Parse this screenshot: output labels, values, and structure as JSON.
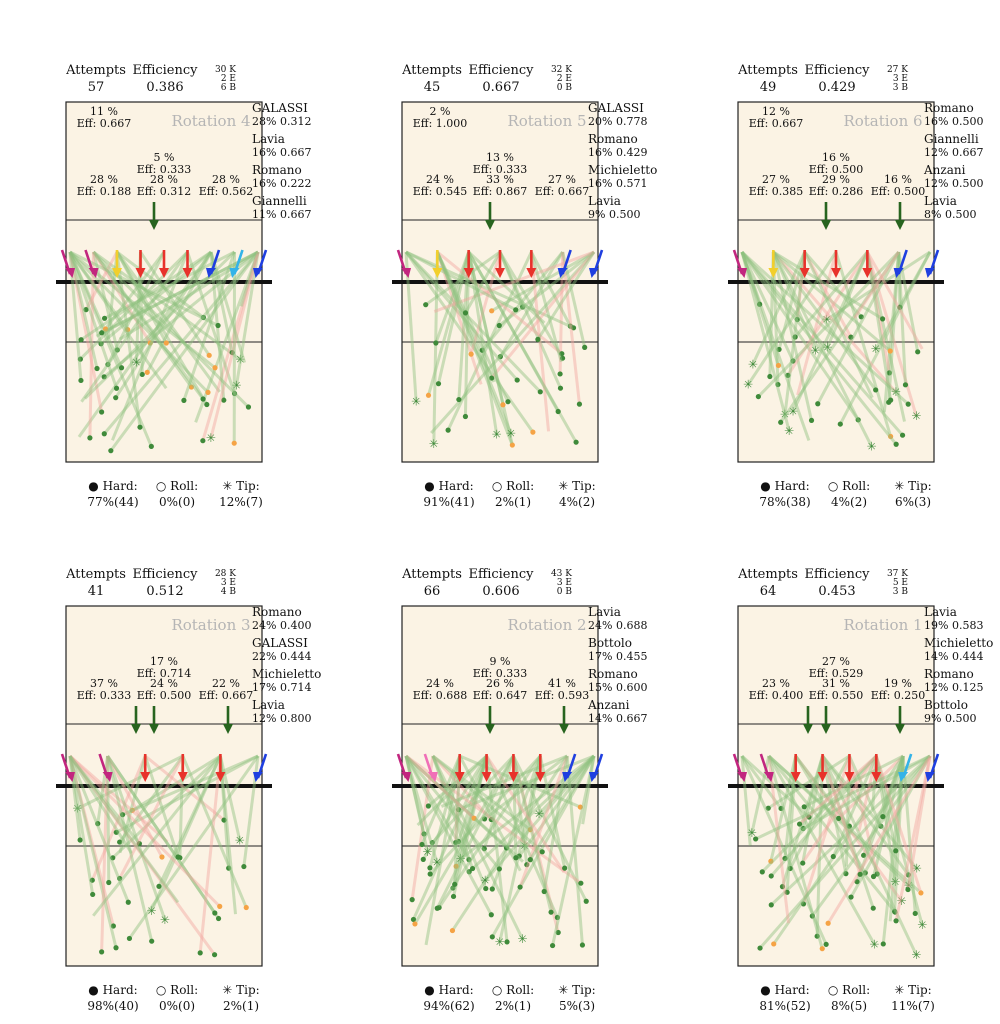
{
  "chart_data": [
    {
      "type": "scatter",
      "title": "Rotation 4",
      "attempts_label": "Attempts",
      "attempts": "57",
      "efficiency_label": "Efficiency",
      "efficiency": "0.386",
      "k_line": "30 K",
      "e_line": "2 E",
      "b_line": "6 B",
      "zones": [
        {
          "pct": "11 %",
          "eff": "Eff: 0.667",
          "pos": "tl"
        },
        {
          "pct": "5 %",
          "eff": "Eff: 0.333",
          "pos": "tm"
        },
        {
          "pct": "28 %",
          "eff": "Eff: 0.188",
          "pos": "bl"
        },
        {
          "pct": "28 %",
          "eff": "Eff: 0.312",
          "pos": "bm"
        },
        {
          "pct": "28 %",
          "eff": "Eff: 0.562",
          "pos": "br"
        }
      ],
      "players": [
        {
          "name": "GALASSI",
          "stat": "28% 0.312"
        },
        {
          "name": "Lavia",
          "stat": "16% 0.667"
        },
        {
          "name": "Romano",
          "stat": "16% 0.222"
        },
        {
          "name": "Giannelli",
          "stat": "11% 0.667"
        }
      ],
      "legend": [
        {
          "symbol": "●",
          "label": "Hard:",
          "value": "77%(44)"
        },
        {
          "symbol": "○",
          "label": "Roll:",
          "value": "0%(0)"
        },
        {
          "symbol": "✳",
          "label": "Tip:",
          "value": "12%(7)"
        }
      ],
      "arrows": [
        "magenta",
        "magenta",
        "yellow",
        "red",
        "red",
        "red",
        "blue",
        "lightblue",
        "blue"
      ],
      "green_arrows": 1
    },
    {
      "type": "scatter",
      "title": "Rotation 5",
      "attempts_label": "Attempts",
      "attempts": "45",
      "efficiency_label": "Efficiency",
      "efficiency": "0.667",
      "k_line": "32 K",
      "e_line": "2 E",
      "b_line": "0 B",
      "zones": [
        {
          "pct": "2 %",
          "eff": "Eff: 1.000",
          "pos": "tl"
        },
        {
          "pct": "13 %",
          "eff": "Eff: 0.333",
          "pos": "tm"
        },
        {
          "pct": "24 %",
          "eff": "Eff: 0.545",
          "pos": "bl"
        },
        {
          "pct": "33 %",
          "eff": "Eff: 0.867",
          "pos": "bm"
        },
        {
          "pct": "27 %",
          "eff": "Eff: 0.667",
          "pos": "br"
        }
      ],
      "players": [
        {
          "name": "GALASSI",
          "stat": "20% 0.778"
        },
        {
          "name": "Romano",
          "stat": "16% 0.429"
        },
        {
          "name": "Michieletto",
          "stat": "16% 0.571"
        },
        {
          "name": "Lavia",
          "stat": "9% 0.500"
        }
      ],
      "legend": [
        {
          "symbol": "●",
          "label": "Hard:",
          "value": "91%(41)"
        },
        {
          "symbol": "○",
          "label": "Roll:",
          "value": "2%(1)"
        },
        {
          "symbol": "✳",
          "label": "Tip:",
          "value": "4%(2)"
        }
      ],
      "arrows": [
        "magenta",
        "yellow",
        "red",
        "red",
        "red",
        "blue",
        "blue"
      ],
      "green_arrows": 1
    },
    {
      "type": "scatter",
      "title": "Rotation 6",
      "attempts_label": "Attempts",
      "attempts": "49",
      "efficiency_label": "Efficiency",
      "efficiency": "0.429",
      "k_line": "27 K",
      "e_line": "3 E",
      "b_line": "3 B",
      "zones": [
        {
          "pct": "12 %",
          "eff": "Eff: 0.667",
          "pos": "tl"
        },
        {
          "pct": "16 %",
          "eff": "Eff: 0.500",
          "pos": "tm"
        },
        {
          "pct": "27 %",
          "eff": "Eff: 0.385",
          "pos": "bl"
        },
        {
          "pct": "29 %",
          "eff": "Eff: 0.286",
          "pos": "bm"
        },
        {
          "pct": "16 %",
          "eff": "Eff: 0.500",
          "pos": "br"
        }
      ],
      "players": [
        {
          "name": "Romano",
          "stat": "16% 0.500"
        },
        {
          "name": "Giannelli",
          "stat": "12% 0.667"
        },
        {
          "name": "Anzani",
          "stat": "12% 0.500"
        },
        {
          "name": "Lavia",
          "stat": "8% 0.500"
        }
      ],
      "legend": [
        {
          "symbol": "●",
          "label": "Hard:",
          "value": "78%(38)"
        },
        {
          "symbol": "○",
          "label": "Roll:",
          "value": "4%(2)"
        },
        {
          "symbol": "✳",
          "label": "Tip:",
          "value": "6%(3)"
        }
      ],
      "arrows": [
        "magenta",
        "yellow",
        "red",
        "red",
        "red",
        "blue",
        "blue"
      ],
      "green_arrows": 2
    },
    {
      "type": "scatter",
      "title": "Rotation 3",
      "attempts_label": "Attempts",
      "attempts": "41",
      "efficiency_label": "Efficiency",
      "efficiency": "0.512",
      "k_line": "28 K",
      "e_line": "3 E",
      "b_line": "4 B",
      "zones": [
        {
          "pct": "17 %",
          "eff": "Eff: 0.714",
          "pos": "tm"
        },
        {
          "pct": "37 %",
          "eff": "Eff: 0.333",
          "pos": "bl"
        },
        {
          "pct": "24 %",
          "eff": "Eff: 0.500",
          "pos": "bm"
        },
        {
          "pct": "22 %",
          "eff": "Eff: 0.667",
          "pos": "br"
        }
      ],
      "players": [
        {
          "name": "Romano",
          "stat": "24% 0.400"
        },
        {
          "name": "GALASSI",
          "stat": "22% 0.444"
        },
        {
          "name": "Michieletto",
          "stat": "17% 0.714"
        },
        {
          "name": "Lavia",
          "stat": "12% 0.800"
        }
      ],
      "legend": [
        {
          "symbol": "●",
          "label": "Hard:",
          "value": "98%(40)"
        },
        {
          "symbol": "○",
          "label": "Roll:",
          "value": "0%(0)"
        },
        {
          "symbol": "✳",
          "label": "Tip:",
          "value": "2%(1)"
        }
      ],
      "arrows": [
        "magenta",
        "magenta",
        "red",
        "red",
        "red",
        "blue"
      ],
      "green_arrows": 3
    },
    {
      "type": "scatter",
      "title": "Rotation 2",
      "attempts_label": "Attempts",
      "attempts": "66",
      "efficiency_label": "Efficiency",
      "efficiency": "0.606",
      "k_line": "43 K",
      "e_line": "3 E",
      "b_line": "0 B",
      "zones": [
        {
          "pct": "9 %",
          "eff": "Eff: 0.333",
          "pos": "tm"
        },
        {
          "pct": "24 %",
          "eff": "Eff: 0.688",
          "pos": "bl"
        },
        {
          "pct": "26 %",
          "eff": "Eff: 0.647",
          "pos": "bm"
        },
        {
          "pct": "41 %",
          "eff": "Eff: 0.593",
          "pos": "br"
        }
      ],
      "players": [
        {
          "name": "Lavia",
          "stat": "24% 0.688"
        },
        {
          "name": "Bottolo",
          "stat": "17% 0.455"
        },
        {
          "name": "Romano",
          "stat": "15% 0.600"
        },
        {
          "name": "Anzani",
          "stat": "14% 0.667"
        }
      ],
      "legend": [
        {
          "symbol": "●",
          "label": "Hard:",
          "value": "94%(62)"
        },
        {
          "symbol": "○",
          "label": "Roll:",
          "value": "2%(1)"
        },
        {
          "symbol": "✳",
          "label": "Tip:",
          "value": "5%(3)"
        }
      ],
      "arrows": [
        "magenta",
        "pink",
        "red",
        "red",
        "red",
        "red",
        "blue",
        "blue"
      ],
      "green_arrows": 2
    },
    {
      "type": "scatter",
      "title": "Rotation 1",
      "attempts_label": "Attempts",
      "attempts": "64",
      "efficiency_label": "Efficiency",
      "efficiency": "0.453",
      "k_line": "37 K",
      "e_line": "5 E",
      "b_line": "3 B",
      "zones": [
        {
          "pct": "27 %",
          "eff": "Eff: 0.529",
          "pos": "tm"
        },
        {
          "pct": "23 %",
          "eff": "Eff: 0.400",
          "pos": "bl"
        },
        {
          "pct": "31 %",
          "eff": "Eff: 0.550",
          "pos": "bm"
        },
        {
          "pct": "19 %",
          "eff": "Eff: 0.250",
          "pos": "br"
        }
      ],
      "players": [
        {
          "name": "Lavia",
          "stat": "19% 0.583"
        },
        {
          "name": "Michieletto",
          "stat": "14% 0.444"
        },
        {
          "name": "Romano",
          "stat": "12% 0.125"
        },
        {
          "name": "Bottolo",
          "stat": "9% 0.500"
        }
      ],
      "legend": [
        {
          "symbol": "●",
          "label": "Hard:",
          "value": "81%(52)"
        },
        {
          "symbol": "○",
          "label": "Roll:",
          "value": "8%(5)"
        },
        {
          "symbol": "✳",
          "label": "Tip:",
          "value": "11%(7)"
        }
      ],
      "arrows": [
        "magenta",
        "magenta",
        "red",
        "red",
        "red",
        "red",
        "lightblue",
        "blue"
      ],
      "green_arrows": 3
    }
  ],
  "colors": {
    "court_bg": "#fbf3e4",
    "hard": "#3f8a3a",
    "line_green": "#8fc07e",
    "line_red": "#f2a79f",
    "out": "#e8605a",
    "tip_orange": "#f5a345",
    "magenta": "#c2267f",
    "yellow": "#f2cf2c",
    "red": "#e8322b",
    "blue": "#1f3fe0",
    "lightblue": "#33b3e8",
    "pink": "#f06fb7",
    "dark_green": "#27641f",
    "title_grey": "#b5b5b5"
  }
}
